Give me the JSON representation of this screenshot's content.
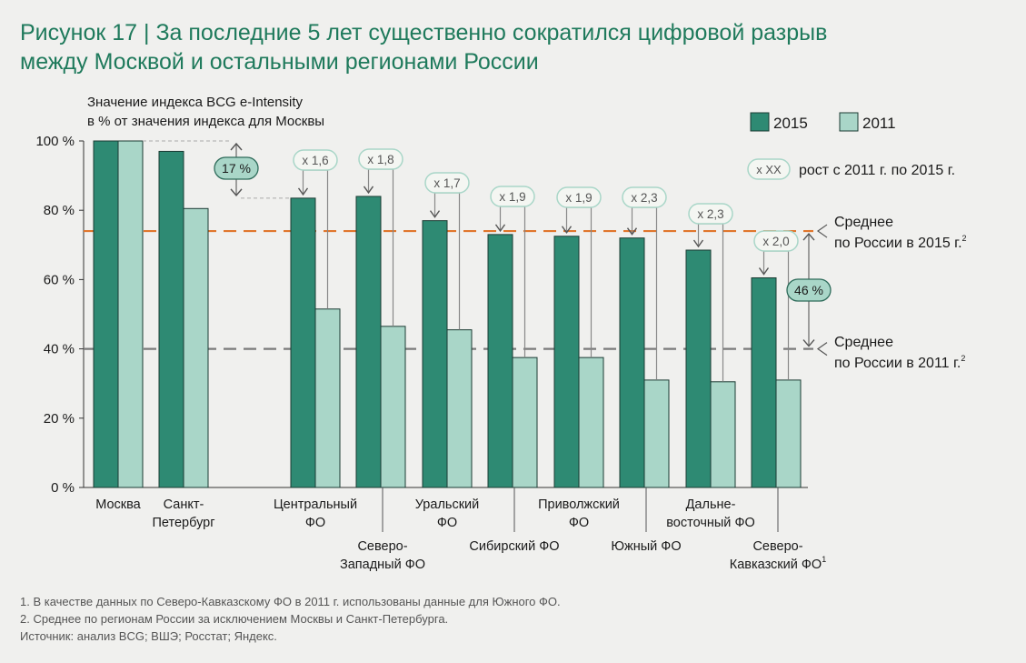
{
  "title": {
    "figure": "Рисунок 17 |",
    "line1": "За последние 5 лет существенно сократился цифровой разрыв",
    "line2": "между Москвой и остальными регионами России"
  },
  "chart_data": {
    "type": "bar",
    "ylabel": [
      "Значение индекса BCG e-Intensity",
      "в  % от значения индекса для Москвы"
    ],
    "ylim": [
      0,
      100
    ],
    "yticks": [
      "0 %",
      "20 %",
      "40 %",
      "60 %",
      "80 %",
      "100 %"
    ],
    "categories": [
      {
        "label": [
          "Москва"
        ],
        "pos": "top"
      },
      {
        "label": [
          "Санкт-",
          "Петербург"
        ],
        "pos": "top"
      },
      {
        "label": [
          "Центральный",
          "ФО"
        ],
        "pos": "top"
      },
      {
        "label": [
          "Северо-",
          "Западный ФО"
        ],
        "pos": "bottom"
      },
      {
        "label": [
          "Уральский",
          "ФО"
        ],
        "pos": "top"
      },
      {
        "label": [
          "Сибирский ФО"
        ],
        "pos": "bottom"
      },
      {
        "label": [
          "Приволжский",
          "ФО"
        ],
        "pos": "top"
      },
      {
        "label": [
          "Южный ФО"
        ],
        "pos": "bottom"
      },
      {
        "label": [
          "Дальне-",
          "восточный ФО"
        ],
        "pos": "top"
      },
      {
        "label": [
          "Северо-",
          "Кавказский ФО"
        ],
        "sup": "1",
        "pos": "bottom"
      }
    ],
    "series": [
      {
        "name": "2015",
        "color": "#2e8a73",
        "values": [
          100,
          97,
          83.5,
          84,
          77,
          73,
          72.5,
          72,
          68.5,
          60.5
        ]
      },
      {
        "name": "2011",
        "color": "#a9d6c8",
        "values": [
          100,
          80.5,
          51.5,
          46.5,
          45.5,
          37.5,
          37.5,
          31,
          30.5,
          31
        ]
      }
    ],
    "growth_labels": [
      "",
      "",
      "x 1,6",
      "x 1,8",
      "x 1,7",
      "x 1,9",
      "x 1,9",
      "x 2,3",
      "x 2,3",
      "x 2,0"
    ],
    "growth_legend": {
      "badge": "x XX",
      "text": "рост с 2011 г. по 2015 г."
    },
    "reference_lines": [
      {
        "value": 74,
        "color": "#e0762c",
        "label": [
          "Среднее",
          "по России в 2015 г."
        ],
        "sup": "2"
      },
      {
        "value": 40,
        "color": "#7a7a7a",
        "label": [
          "Среднее",
          "по России в 2011 г."
        ],
        "sup": "2"
      }
    ],
    "gap_annotations": [
      {
        "label": "17 %",
        "from": 100,
        "to": 83.5
      },
      {
        "label": "46 %",
        "from": 74,
        "to": 40
      }
    ],
    "legend_position": "top-right"
  },
  "footnotes": [
    "1. В качестве данных по Северо-Кавказскому ФО в 2011 г. использованы данные для Южного ФО.",
    "2. Среднее по регионам России за исключением Москвы и Санкт-Петербурга.",
    "Источник: анализ BCG; ВШЭ; Росстат; Яндекс."
  ]
}
